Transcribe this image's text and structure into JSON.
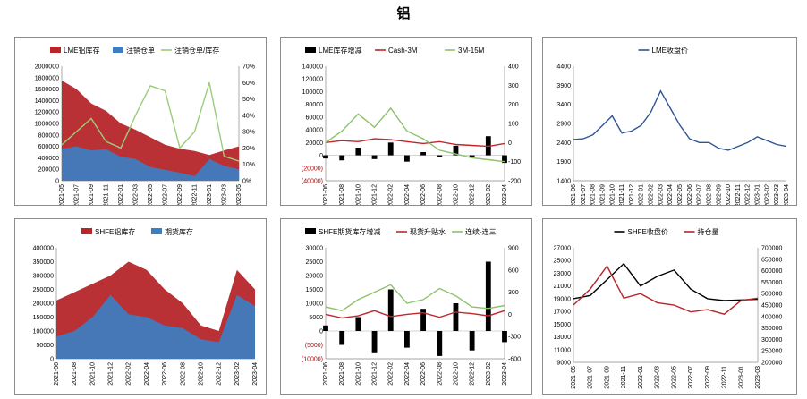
{
  "page": {
    "title": "铝"
  },
  "chart_data": [
    {
      "id": "c1",
      "type": "area",
      "x": [
        "2021-05",
        "2021-07",
        "2021-09",
        "2021-11",
        "2022-01",
        "2022-03",
        "2022-05",
        "2022-07",
        "2022-09",
        "2022-11",
        "2023-01",
        "2023-03",
        "2023-05"
      ],
      "ylim": [
        0,
        2000000
      ],
      "ylim_right": [
        0,
        70
      ],
      "yticks_left": [
        "0",
        "200000",
        "400000",
        "600000",
        "800000",
        "1000000",
        "1200000",
        "1400000",
        "1600000",
        "1800000",
        "2000000"
      ],
      "yticks_right": [
        "0%",
        "10%",
        "20%",
        "30%",
        "40%",
        "50%",
        "60%",
        "70%"
      ],
      "legend": [
        "LME铝库存",
        "注销仓单",
        "注销仓单/库存"
      ],
      "legend_position": "top",
      "series": [
        {
          "name": "LME铝库存",
          "type": "area",
          "color": "#b5252a",
          "axis": "left",
          "values": [
            1750000,
            1600000,
            1350000,
            1220000,
            1000000,
            890000,
            760000,
            630000,
            560000,
            520000,
            450000,
            530000,
            600000
          ]
        },
        {
          "name": "注销仓单",
          "type": "area",
          "color": "#3f7cc0",
          "axis": "left",
          "values": [
            560000,
            600000,
            530000,
            550000,
            420000,
            380000,
            240000,
            190000,
            140000,
            80000,
            380000,
            260000,
            200000
          ]
        },
        {
          "name": "注销仓单/库存",
          "type": "line",
          "color": "#9ccc7a",
          "axis": "right",
          "values": [
            22,
            30,
            38,
            24,
            20,
            40,
            58,
            55,
            20,
            30,
            60,
            15,
            12
          ]
        }
      ]
    },
    {
      "id": "c2",
      "type": "bar",
      "x": [
        "2021-06",
        "2021-08",
        "2021-10",
        "2021-12",
        "2022-02",
        "2022-04",
        "2022-06",
        "2022-08",
        "2022-10",
        "2022-12",
        "2023-02",
        "2023-04"
      ],
      "ylim": [
        -40000,
        140000
      ],
      "ylim_right": [
        -200,
        400
      ],
      "yticks_left": [
        "(40000)",
        "(20000)",
        "0",
        "20000",
        "40000",
        "60000",
        "80000",
        "100000",
        "120000",
        "140000"
      ],
      "yticks_right": [
        "-200",
        "-100",
        "0",
        "100",
        "200",
        "300",
        "400"
      ],
      "legend": [
        "LME库存增减",
        "Cash-3M",
        "3M-15M"
      ],
      "legend_position": "top",
      "series": [
        {
          "name": "LME库存增减",
          "type": "bar",
          "color": "#000000",
          "axis": "left",
          "values": [
            -5000,
            -8000,
            12000,
            -6000,
            20000,
            -10000,
            5000,
            -3000,
            15000,
            -4000,
            30000,
            -12000
          ]
        },
        {
          "name": "Cash-3M",
          "type": "line",
          "color": "#c0282d",
          "axis": "right",
          "values": [
            0,
            10,
            5,
            20,
            15,
            5,
            -5,
            5,
            -10,
            -15,
            -20,
            -5
          ]
        },
        {
          "name": "3M-15M",
          "type": "line",
          "color": "#8cc26b",
          "axis": "right",
          "values": [
            0,
            60,
            150,
            80,
            180,
            60,
            20,
            -40,
            -60,
            -80,
            -90,
            -100
          ]
        }
      ]
    },
    {
      "id": "c3",
      "type": "line",
      "x": [
        "2021-06",
        "2021-07",
        "2021-08",
        "2021-09",
        "2021-10",
        "2021-11",
        "2021-12",
        "2022-01",
        "2022-02",
        "2022-03",
        "2022-04",
        "2022-05",
        "2022-06",
        "2022-07",
        "2022-08",
        "2022-09",
        "2022-10",
        "2022-11",
        "2022-12",
        "2023-01",
        "2023-02",
        "2023-03",
        "2023-04"
      ],
      "ylim": [
        1400,
        4400
      ],
      "yticks_left": [
        "1400",
        "1900",
        "2400",
        "2900",
        "3400",
        "3900",
        "4400"
      ],
      "legend": [
        "LME收盘价"
      ],
      "legend_position": "top",
      "series": [
        {
          "name": "LME收盘价",
          "type": "line",
          "color": "#2f5597",
          "axis": "left",
          "values": [
            2480,
            2500,
            2600,
            2850,
            3100,
            2650,
            2700,
            2850,
            3200,
            3750,
            3300,
            2850,
            2500,
            2400,
            2400,
            2250,
            2200,
            2300,
            2400,
            2550,
            2450,
            2350,
            2300
          ]
        }
      ]
    },
    {
      "id": "c4",
      "type": "area",
      "x": [
        "2021-06",
        "2021-08",
        "2021-10",
        "2021-12",
        "2022-02",
        "2022-04",
        "2022-06",
        "2022-08",
        "2022-10",
        "2022-12",
        "2023-02",
        "2023-04"
      ],
      "ylim": [
        0,
        400000
      ],
      "yticks_left": [
        "0",
        "50000",
        "100000",
        "150000",
        "200000",
        "250000",
        "300000",
        "350000",
        "400000"
      ],
      "legend": [
        "SHFE铝库存",
        "期货库存"
      ],
      "legend_position": "top",
      "series": [
        {
          "name": "SHFE铝库存",
          "type": "area",
          "color": "#b5252a",
          "axis": "left",
          "values": [
            210000,
            240000,
            270000,
            300000,
            350000,
            320000,
            250000,
            200000,
            120000,
            100000,
            320000,
            250000
          ]
        },
        {
          "name": "期货库存",
          "type": "area",
          "color": "#3f7cc0",
          "axis": "left",
          "values": [
            80000,
            100000,
            150000,
            230000,
            160000,
            150000,
            120000,
            110000,
            70000,
            60000,
            230000,
            190000
          ]
        }
      ]
    },
    {
      "id": "c5",
      "type": "bar",
      "x": [
        "2021-06",
        "2021-08",
        "2021-10",
        "2021-12",
        "2022-02",
        "2022-04",
        "2022-06",
        "2022-08",
        "2022-10",
        "2022-12",
        "2023-02",
        "2023-04"
      ],
      "ylim": [
        -10000,
        30000
      ],
      "ylim_right": [
        -600,
        900
      ],
      "yticks_left": [
        "(10000)",
        "(5000)",
        "0",
        "5000",
        "10000",
        "15000",
        "20000",
        "25000",
        "30000"
      ],
      "yticks_right": [
        "-600",
        "-300",
        "0",
        "300",
        "600",
        "900"
      ],
      "legend": [
        "SHFE期货库存增减",
        "现货升贴水",
        "连续-连三"
      ],
      "legend_position": "top",
      "series": [
        {
          "name": "SHFE期货库存增减",
          "type": "bar",
          "color": "#000000",
          "axis": "left",
          "values": [
            2000,
            -5000,
            5000,
            -8000,
            15000,
            -6000,
            8000,
            -9000,
            10000,
            -7000,
            25000,
            -4000
          ]
        },
        {
          "name": "现货升贴水",
          "type": "line",
          "color": "#c0282d",
          "axis": "right",
          "values": [
            0,
            -50,
            -20,
            50,
            -30,
            0,
            20,
            -40,
            30,
            10,
            -20,
            50
          ]
        },
        {
          "name": "连续-连三",
          "type": "line",
          "color": "#8cc26b",
          "axis": "right",
          "values": [
            100,
            50,
            200,
            300,
            400,
            150,
            200,
            350,
            250,
            100,
            80,
            120
          ]
        }
      ]
    },
    {
      "id": "c6",
      "type": "line",
      "x": [
        "2021-05",
        "2021-07",
        "2021-09",
        "2021-11",
        "2022-01",
        "2022-03",
        "2022-05",
        "2022-07",
        "2022-09",
        "2022-11",
        "2023-01",
        "2023-03"
      ],
      "ylim": [
        9000,
        27000
      ],
      "ylim_right": [
        200000,
        700000
      ],
      "yticks_left": [
        "9000",
        "11000",
        "13000",
        "15000",
        "17000",
        "19000",
        "21000",
        "23000",
        "25000",
        "27000"
      ],
      "yticks_right": [
        "200000",
        "250000",
        "300000",
        "350000",
        "400000",
        "450000",
        "500000",
        "550000",
        "600000",
        "650000",
        "700000"
      ],
      "legend": [
        "SHFE收盘价",
        "持仓量"
      ],
      "legend_position": "top",
      "series": [
        {
          "name": "SHFE收盘价",
          "type": "line",
          "color": "#000000",
          "axis": "left",
          "values": [
            19000,
            19500,
            22000,
            24500,
            21000,
            22500,
            23500,
            20500,
            19000,
            18700,
            18800,
            18900
          ]
        },
        {
          "name": "持仓量",
          "type": "line",
          "color": "#b5252a",
          "axis": "right",
          "values": [
            450000,
            520000,
            620000,
            480000,
            500000,
            460000,
            450000,
            420000,
            430000,
            410000,
            470000,
            480000
          ]
        }
      ]
    }
  ]
}
